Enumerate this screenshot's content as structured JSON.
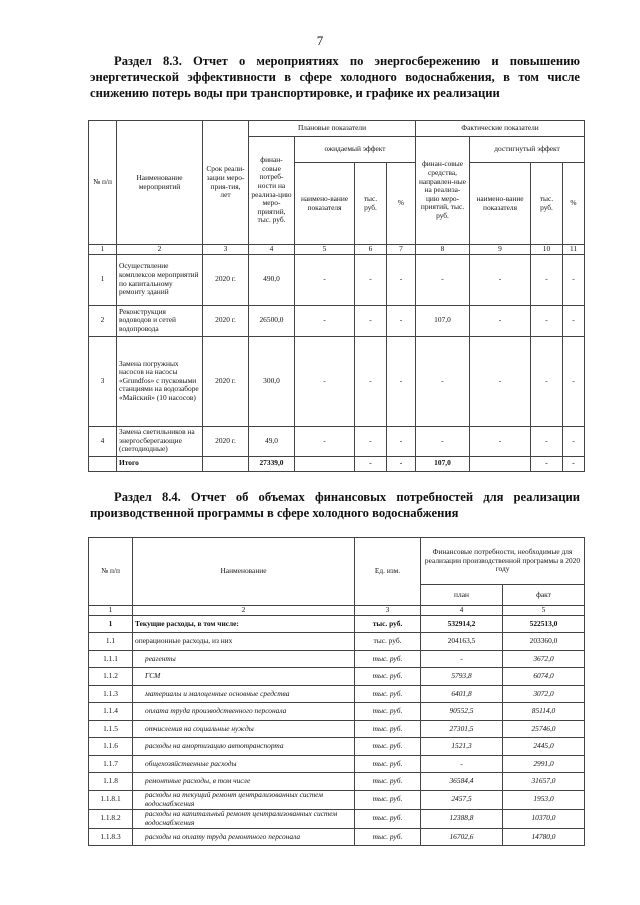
{
  "page_number": "7",
  "section1": {
    "title": "Раздел 8.3. Отчет о мероприятиях по энергосбережению и повышению энергетической эффективности в сфере холодного водоснабжения, в том числе снижению потерь воды при транспортировке, и графике их реализации",
    "headers": {
      "no": "№ п/п",
      "name": "Наименование мероприятий",
      "term": "Срок реали-зации меро-прия-тия, лет",
      "plan_group": "Плановые показатели",
      "fact_group": "Фактические показатели",
      "plan_fin": "финан-совые потреб-ности на реализа-цию меро-приятий, тыс. руб.",
      "expected": "ожидаемый эффект",
      "fact_fin": "финан-совые средства, направлен-ные на реализа-цию меро-приятий, тыс. руб.",
      "achieved": "достигнутый эффект",
      "ind_name": "наимено-вание показателя",
      "thous": "тыс. руб.",
      "pct": "%"
    },
    "col_numbers": [
      "1",
      "2",
      "3",
      "4",
      "5",
      "6",
      "7",
      "8",
      "9",
      "10",
      "11"
    ],
    "rows": [
      [
        "1",
        "Осуществление комплексов мероприятий по капитальному ремонту зданий",
        "2020 г.",
        "490,0",
        "-",
        "-",
        "-",
        "-",
        "-",
        "-",
        "-"
      ],
      [
        "2",
        "Реконструкция водоводов и сетей водопровода",
        "2020 г.",
        "26500,0",
        "-",
        "-",
        "-",
        "107,0",
        "-",
        "-",
        "-"
      ],
      [
        "3",
        "Замена погружных насосов на насосы «Grundfos» с пусковыми станциями на водозаборе «Майский» (10 насосов)",
        "2020 г.",
        "300,0",
        "-",
        "-",
        "-",
        "-",
        "-",
        "-",
        "-"
      ],
      [
        "4",
        "Замена светильников на энергосберегающие (светодиодные)",
        "2020 г.",
        "49,0",
        "-",
        "-",
        "-",
        "-",
        "-",
        "-",
        "-"
      ]
    ],
    "total": [
      "",
      "Итого",
      "",
      "27339,0",
      "",
      "-",
      "-",
      "107,0",
      "",
      "-",
      "-"
    ]
  },
  "section2": {
    "title": "Раздел 8.4. Отчет об объемах финансовых потребностей для реализации производственной программы в сфере холодного водоснабжения",
    "headers": {
      "no": "№ п/п",
      "name": "Наименование",
      "unit": "Ед. изм.",
      "fin": "Финансовые потребности, необходимые для реализации производственной программы в 2020 году",
      "plan": "план",
      "fact": "факт"
    },
    "col_numbers": [
      "1",
      "2",
      "3",
      "4",
      "5"
    ],
    "rows": [
      {
        "no": "1",
        "name": "Текущие расходы, в том числе:",
        "unit": "тыс. руб.",
        "plan": "532914,2",
        "fact": "522513,0",
        "style": "bold"
      },
      {
        "no": "1.1",
        "name": "операционные расходы, из них",
        "unit": "тыс. руб.",
        "plan": "204163,5",
        "fact": "203360,0",
        "style": "normal"
      },
      {
        "no": "1.1.1",
        "name": "реагенты",
        "unit": "тыс. руб.",
        "plan": "-",
        "fact": "3672,0",
        "style": "italic"
      },
      {
        "no": "1.1.2",
        "name": "ГСМ",
        "unit": "тыс. руб.",
        "plan": "5793,8",
        "fact": "6074,0",
        "style": "italic"
      },
      {
        "no": "1.1.3",
        "name": "материалы и малоценные основные средства",
        "unit": "тыс. руб.",
        "plan": "6401,8",
        "fact": "3072,0",
        "style": "italic"
      },
      {
        "no": "1.1.4",
        "name": "оплата труда производственного персонала",
        "unit": "тыс. руб.",
        "plan": "90552,5",
        "fact": "85114,0",
        "style": "italic"
      },
      {
        "no": "1.1.5",
        "name": "отчисления на социальные нужды",
        "unit": "тыс. руб.",
        "plan": "27301,5",
        "fact": "25746,0",
        "style": "italic"
      },
      {
        "no": "1.1.6",
        "name": "расходы на амортизацию автотранспорта",
        "unit": "тыс. руб.",
        "plan": "1521,3",
        "fact": "2445,0",
        "style": "italic"
      },
      {
        "no": "1.1.7",
        "name": "общехозяйственные расходы",
        "unit": "тыс. руб.",
        "plan": "-",
        "fact": "2991,0",
        "style": "italic"
      },
      {
        "no": "1.1.8",
        "name": "ремонтные расходы, в том числе",
        "unit": "тыс. руб.",
        "plan": "36584,4",
        "fact": "31657,0",
        "style": "italic"
      },
      {
        "no": "1.1.8.1",
        "name": "расходы на текущий ремонт централизованных систем водоснабжения",
        "unit": "тыс. руб.",
        "plan": "2457,5",
        "fact": "1953,0",
        "style": "italic"
      },
      {
        "no": "1.1.8.2",
        "name": "расходы на капитальный ремонт централизованных систем водоснабжения",
        "unit": "тыс. руб.",
        "plan": "12388,8",
        "fact": "10370,0",
        "style": "italic"
      },
      {
        "no": "1.1.8.3",
        "name": "расходы на оплату труда ремонтного персонала",
        "unit": "тыс. руб.",
        "plan": "16702,6",
        "fact": "14780,0",
        "style": "italic"
      }
    ]
  }
}
